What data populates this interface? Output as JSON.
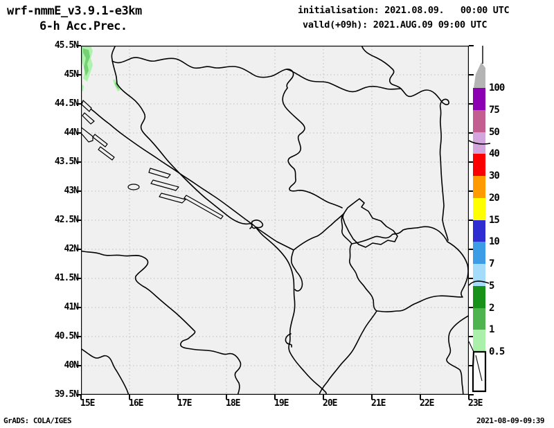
{
  "header": {
    "model": "wrf-nmmE_v3.9.1-e3km",
    "product": "6-h Acc.Prec.",
    "init_line": "initialisation: 2021.08.09.   00:00 UTC",
    "valid_line": "valld(+09h): 2021.AUG.09 09:00 UTC"
  },
  "axes": {
    "lat_labels": [
      "45.5N",
      "45N",
      "44.5N",
      "44N",
      "43.5N",
      "43N",
      "42.5N",
      "42N",
      "41.5N",
      "41N",
      "40.5N",
      "40N",
      "39.5N"
    ],
    "lon_labels": [
      "15E",
      "16E",
      "17E",
      "18E",
      "19E",
      "20E",
      "21E",
      "22E",
      "23E"
    ]
  },
  "colorbar": {
    "values": [
      "100",
      "75",
      "50",
      "40",
      "30",
      "20",
      "15",
      "10",
      "7",
      "5",
      "2",
      "1",
      "0.5"
    ],
    "colors": [
      "#8c00b4",
      "#c25f90",
      "#d2a5dc",
      "#fa0000",
      "#ff9b00",
      "#ffff00",
      "#2d2dd2",
      "#3c9ce6",
      "#a5dcfa",
      "#179117",
      "#4fb44f",
      "#aaf0aa"
    ],
    "over_color": "#b4b4b4",
    "under_color": "#fdfdfd"
  },
  "map_style": {
    "background": "#f0f0f0",
    "grid_color": "#bdbdbd",
    "border_color": "#000000",
    "precip_light": "#aef2ae",
    "precip_medium": "#74d274"
  },
  "footer": {
    "credit": "GrADS: COLA/IGES",
    "timestamp": "2021-08-09-09:39"
  }
}
